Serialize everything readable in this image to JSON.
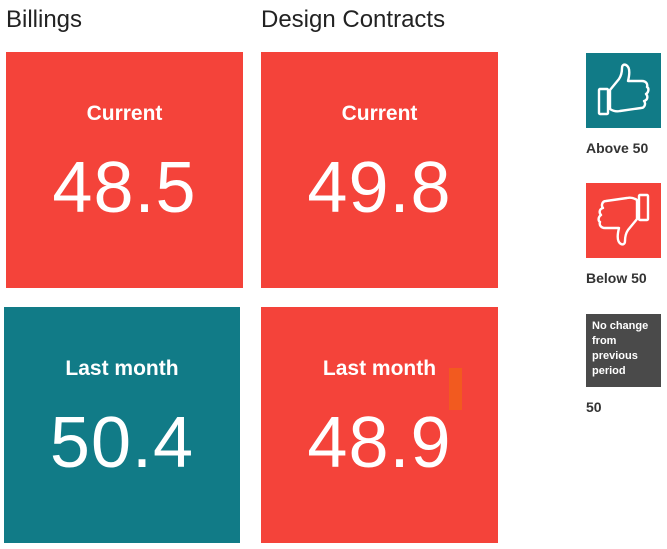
{
  "colors": {
    "below_50": "#f4433a",
    "above_50": "#117b87",
    "no_change": "#4a4a4a",
    "marker": "#f25a1f"
  },
  "billings": {
    "title": "Billings",
    "current": {
      "label": "Current",
      "value": "48.5"
    },
    "last_month": {
      "label": "Last month",
      "value": "50.4"
    }
  },
  "design_contracts": {
    "title": "Design Contracts",
    "current": {
      "label": "Current",
      "value": "49.8"
    },
    "last_month": {
      "label": "Last month",
      "value": "48.9"
    }
  },
  "legend": {
    "above": {
      "icon": "thumbs-up-icon",
      "label": "Above 50"
    },
    "below": {
      "icon": "thumbs-down-icon",
      "label": "Below 50"
    },
    "no_change": {
      "lines": [
        "No change",
        "from",
        "previous",
        "period"
      ],
      "label": "50"
    }
  }
}
